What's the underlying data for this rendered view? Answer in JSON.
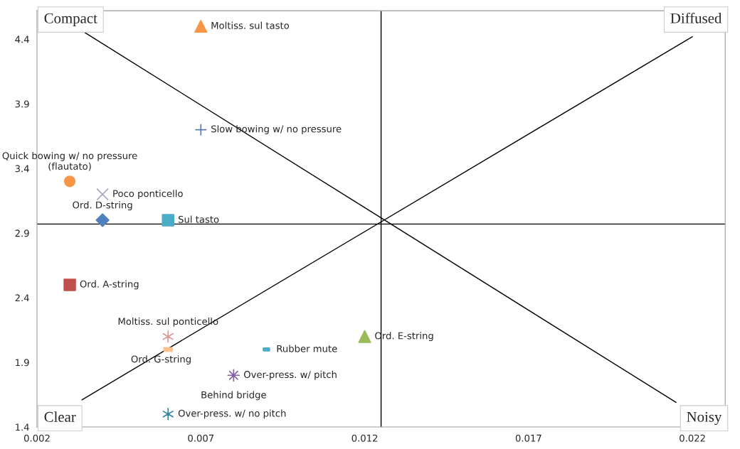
{
  "chart_data": {
    "type": "scatter",
    "xlim": [
      0.002,
      0.023
    ],
    "xticks": [
      0.002,
      0.007,
      0.012,
      0.017,
      0.022
    ],
    "ylim": [
      1.4,
      4.62
    ],
    "yticks": [
      1.4,
      1.9,
      2.4,
      2.9,
      3.4,
      3.9,
      4.4
    ],
    "grid": false,
    "legend": false,
    "series": [
      {
        "name": "Moltiss. sul tasto",
        "color": "#f79646",
        "marker": "triangle",
        "x": [
          0.007
        ],
        "values": [
          4.5
        ]
      },
      {
        "name": "Slow bowing w/ no pressure",
        "color": "#5a7bb0",
        "marker": "cross",
        "x": [
          0.007
        ],
        "values": [
          3.7
        ]
      },
      {
        "name": "Quick bowing w/ no pressure\n(flautato)",
        "color": "#f79646",
        "marker": "circle",
        "x": [
          0.003
        ],
        "values": [
          3.3
        ]
      },
      {
        "name": "Poco ponticello",
        "color": "#b3a2c7",
        "marker": "cross",
        "x": [
          0.004
        ],
        "values": [
          3.2
        ]
      },
      {
        "name": "Ord. D-string",
        "color": "#4f81bd",
        "marker": "diamond",
        "x": [
          0.004
        ],
        "values": [
          3.0
        ]
      },
      {
        "name": "Sul tasto",
        "color": "#4bacc6",
        "marker": "square",
        "x": [
          0.006
        ],
        "values": [
          3.0
        ]
      },
      {
        "name": "Ord. A-string",
        "color": "#c0504d",
        "marker": "square",
        "x": [
          0.003
        ],
        "values": [
          2.5
        ]
      },
      {
        "name": "Moltiss. sul ponticello",
        "color": "#d99694",
        "marker": "cross",
        "x": [
          0.006
        ],
        "values": [
          2.1
        ]
      },
      {
        "name": "Ord. G-string",
        "color": "#fac090",
        "marker": "square",
        "x": [
          0.006
        ],
        "values": [
          2.0
        ]
      },
      {
        "name": "Rubber mute",
        "color": "#4bacc6",
        "marker": "square",
        "x": [
          0.009
        ],
        "values": [
          2.0
        ]
      },
      {
        "name": "Ord. E-string",
        "color": "#9bbb59",
        "marker": "triangle",
        "x": [
          0.012
        ],
        "values": [
          2.1
        ]
      },
      {
        "name": "Over-press. w/ pitch",
        "color": "#8064a2",
        "marker": "cross",
        "x": [
          0.008
        ],
        "values": [
          1.8
        ]
      },
      {
        "name": "Over-press. w/ no pitch",
        "color": "#31859c",
        "marker": "cross",
        "x": [
          0.006
        ],
        "values": [
          1.5
        ]
      },
      {
        "type": "line",
        "color": "#000000",
        "marker": "none",
        "x": [
          0.00347,
          0.0215
        ],
        "values": [
          4.45,
          1.59
        ]
      },
      {
        "type": "line",
        "color": "#000000",
        "marker": "none",
        "x": [
          0.00337,
          0.022
        ],
        "values": [
          1.61,
          4.42
        ]
      }
    ],
    "ref_lines": [
      {
        "axis": "y",
        "value": 2.97,
        "color": "#000000"
      },
      {
        "axis": "x",
        "value": 0.0125,
        "color": "#000000"
      }
    ],
    "annotations": [
      "Compact",
      "Diffused",
      "Clear",
      "Noisy",
      {
        "text": "Behind bridge",
        "x": 0.008,
        "y": 1.8
      }
    ]
  }
}
